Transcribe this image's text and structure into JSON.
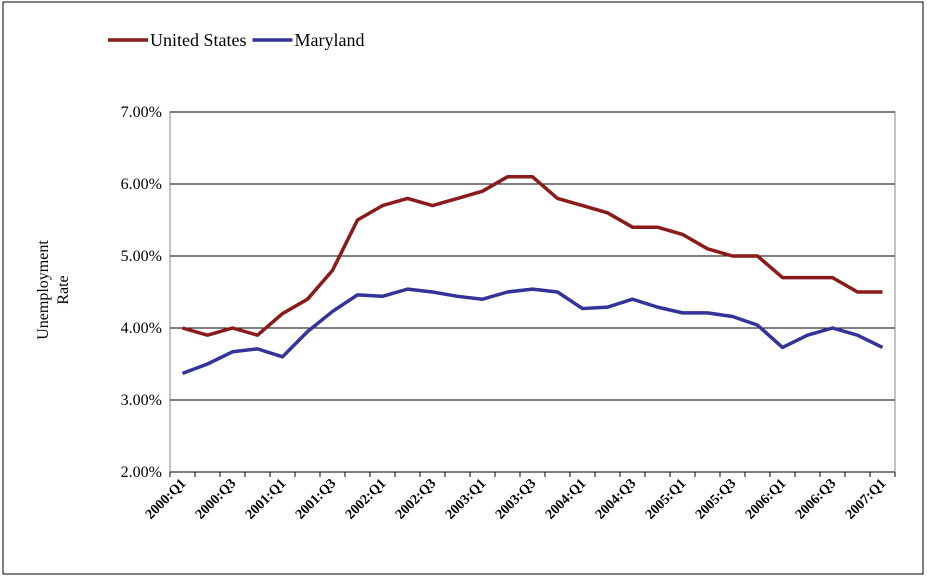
{
  "chart_data": {
    "type": "line",
    "y_label": "Unemployment Rate",
    "categories": [
      "2000:Q1",
      null,
      "2000:Q3",
      null,
      "2001:Q1",
      null,
      "2001:Q3",
      null,
      "2002:Q1",
      null,
      "2002:Q3",
      null,
      "2003:Q1",
      null,
      "2003:Q3",
      null,
      "2004:Q1",
      null,
      "2004:Q3",
      null,
      "2005:Q1",
      null,
      "2005:Q3",
      null,
      "2006:Q1",
      null,
      "2006:Q3",
      null,
      "2007:Q1"
    ],
    "series": [
      {
        "name": "United States",
        "color": "#8b1a1a",
        "values": [
          4.0,
          3.9,
          4.0,
          3.9,
          4.2,
          4.4,
          4.8,
          5.5,
          5.7,
          5.8,
          5.7,
          5.8,
          5.9,
          6.1,
          6.1,
          5.8,
          5.7,
          5.6,
          5.4,
          5.4,
          5.3,
          5.1,
          5.0,
          5.0,
          4.7,
          4.7,
          4.7,
          4.5,
          4.5
        ]
      },
      {
        "name": "Maryland",
        "color": "#333399",
        "values": [
          3.37,
          3.5,
          3.67,
          3.71,
          3.6,
          3.95,
          4.23,
          4.46,
          4.44,
          4.54,
          4.5,
          4.44,
          4.4,
          4.5,
          4.54,
          4.5,
          4.27,
          4.29,
          4.4,
          4.29,
          4.21,
          4.21,
          4.16,
          4.04,
          3.73,
          3.9,
          4.0,
          3.9,
          3.73
        ]
      }
    ],
    "ylim": [
      2,
      7
    ],
    "yticks": [
      {
        "value": 2,
        "label": "2.00%"
      },
      {
        "value": 3,
        "label": "3.00%"
      },
      {
        "value": 4,
        "label": "4.00%"
      },
      {
        "value": 5,
        "label": "5.00%"
      },
      {
        "value": 6,
        "label": "6.00%"
      },
      {
        "value": 7,
        "label": "7.00%"
      }
    ],
    "grid": true,
    "legend": "top"
  }
}
